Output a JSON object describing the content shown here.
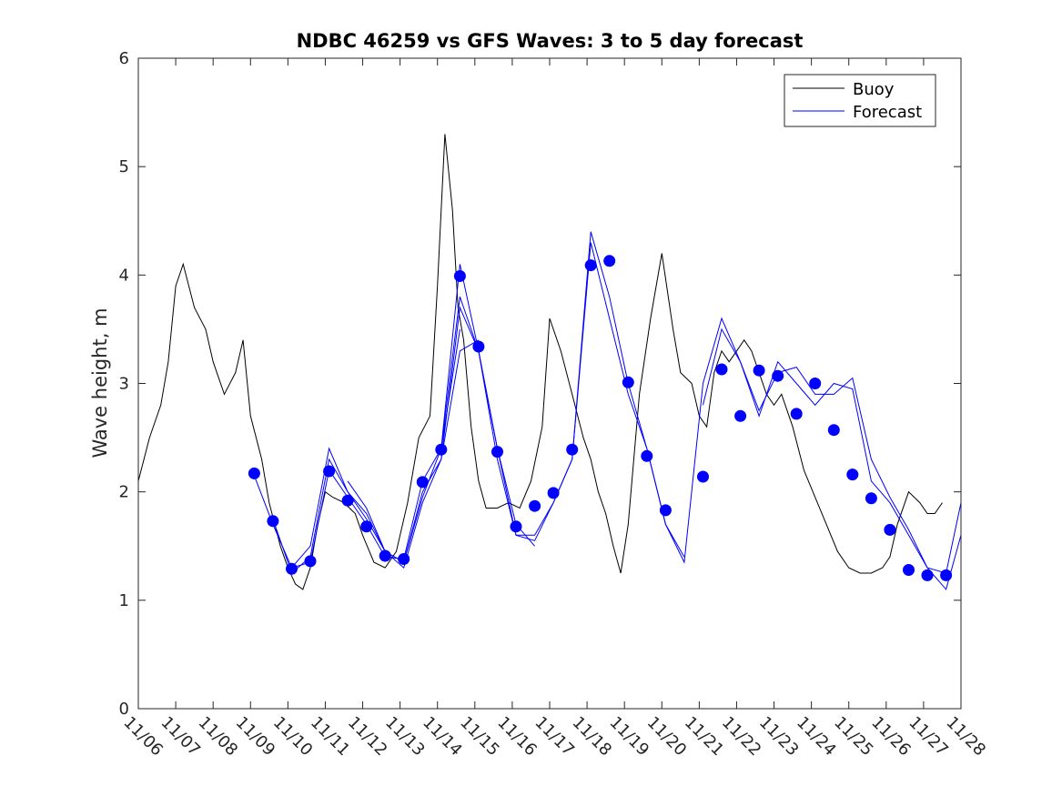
{
  "chart_data": {
    "type": "line",
    "title": "NDBC 46259 vs GFS Waves: 3 to 5 day forecast",
    "xlabel": "",
    "ylabel": "Wave height, m",
    "xlim": [
      0,
      22
    ],
    "ylim": [
      0,
      6
    ],
    "yticks": [
      0,
      1,
      2,
      3,
      4,
      5,
      6
    ],
    "xtick_labels": [
      "11/06",
      "11/07",
      "11/08",
      "11/09",
      "11/10",
      "11/11",
      "11/12",
      "11/13",
      "11/14",
      "11/15",
      "11/16",
      "11/17",
      "11/18",
      "11/19",
      "11/20",
      "11/21",
      "11/22",
      "11/23",
      "11/24",
      "11/25",
      "11/26",
      "11/27",
      "11/28"
    ],
    "grid": false,
    "legend": {
      "position": "top-right",
      "entries": [
        "Buoy",
        "Forecast"
      ]
    },
    "colors": {
      "buoy": "#000000",
      "forecast": "#0000ff",
      "axis": "#262626"
    },
    "buoy": {
      "name": "Buoy",
      "x": [
        0,
        0.3,
        0.6,
        0.8,
        1.0,
        1.2,
        1.5,
        1.8,
        2.0,
        2.3,
        2.6,
        2.8,
        3.0,
        3.3,
        3.5,
        3.8,
        4.0,
        4.2,
        4.4,
        4.6,
        4.8,
        5.0,
        5.2,
        5.5,
        5.8,
        6.0,
        6.3,
        6.6,
        6.9,
        7.2,
        7.5,
        7.8,
        8.0,
        8.2,
        8.4,
        8.55,
        8.7,
        8.9,
        9.1,
        9.3,
        9.6,
        9.9,
        10.2,
        10.5,
        10.8,
        11.0,
        11.3,
        11.6,
        11.9,
        12.1,
        12.3,
        12.5,
        12.7,
        12.9,
        13.1,
        13.4,
        13.7,
        14.0,
        14.3,
        14.5,
        14.8,
        15.0,
        15.2,
        15.4,
        15.6,
        15.8,
        16.0,
        16.2,
        16.4,
        16.6,
        16.8,
        17.0,
        17.2,
        17.5,
        17.8,
        18.1,
        18.4,
        18.7,
        19.0,
        19.3,
        19.6,
        19.9,
        20.1,
        20.3,
        20.6,
        20.9,
        21.1,
        21.3,
        21.5
      ],
      "values": [
        2.1,
        2.5,
        2.8,
        3.2,
        3.9,
        4.1,
        3.7,
        3.5,
        3.2,
        2.9,
        3.1,
        3.4,
        2.7,
        2.3,
        1.9,
        1.5,
        1.3,
        1.15,
        1.1,
        1.3,
        1.7,
        2.0,
        1.95,
        1.9,
        1.8,
        1.6,
        1.35,
        1.3,
        1.45,
        1.9,
        2.5,
        2.7,
        3.9,
        5.3,
        4.6,
        3.7,
        3.4,
        2.6,
        2.1,
        1.85,
        1.85,
        1.9,
        1.85,
        2.1,
        2.6,
        3.6,
        3.3,
        2.9,
        2.5,
        2.3,
        2.0,
        1.8,
        1.5,
        1.25,
        1.7,
        2.9,
        3.6,
        4.2,
        3.5,
        3.1,
        3.0,
        2.7,
        2.6,
        3.1,
        3.3,
        3.2,
        3.3,
        3.4,
        3.3,
        3.1,
        2.9,
        2.8,
        2.9,
        2.6,
        2.2,
        1.95,
        1.7,
        1.45,
        1.3,
        1.25,
        1.25,
        1.3,
        1.4,
        1.7,
        2.0,
        1.9,
        1.8,
        1.8,
        1.9
      ]
    },
    "forecast_runs": [
      {
        "name": "Forecast",
        "x": [
          3.1,
          3.6,
          4.1,
          4.6,
          5.1,
          5.6,
          6.1,
          6.6,
          7.1,
          7.6,
          8.1,
          8.6
        ],
        "values": [
          2.15,
          1.7,
          1.3,
          1.35,
          2.2,
          1.95,
          1.7,
          1.4,
          1.38,
          2.1,
          2.4,
          3.5
        ]
      },
      {
        "name": "Forecast",
        "x": [
          3.6,
          4.1,
          4.6,
          5.1,
          5.6,
          6.1,
          6.6,
          7.1,
          7.6,
          8.1,
          8.6,
          9.1
        ],
        "values": [
          1.75,
          1.25,
          1.4,
          2.3,
          2.0,
          1.75,
          1.45,
          1.35,
          2.0,
          2.3,
          3.3,
          3.4
        ]
      },
      {
        "name": "Forecast",
        "x": [
          4.1,
          4.6,
          5.1,
          5.6,
          6.1,
          6.6,
          7.1,
          7.6,
          8.1,
          8.6,
          9.1,
          9.6,
          10.1,
          10.6
        ],
        "values": [
          1.3,
          1.5,
          2.4,
          2.0,
          1.8,
          1.45,
          1.3,
          1.9,
          2.3,
          3.7,
          3.3,
          2.4,
          1.7,
          1.5
        ]
      },
      {
        "name": "Forecast",
        "x": [
          5.6,
          6.1,
          6.6,
          7.1,
          7.6,
          8.1,
          8.6,
          9.1,
          9.6,
          10.1,
          10.6,
          11.1,
          11.6,
          12.1,
          12.6,
          13.1,
          13.6,
          14.1,
          14.6
        ],
        "values": [
          2.1,
          1.85,
          1.45,
          1.35,
          1.95,
          2.4,
          4.1,
          3.3,
          2.3,
          1.6,
          1.55,
          1.9,
          2.3,
          4.3,
          3.6,
          2.9,
          2.4,
          1.7,
          1.4
        ]
      },
      {
        "name": "Forecast",
        "x": [
          8.1,
          8.6,
          9.1,
          9.6,
          10.1,
          10.6,
          11.1,
          11.6,
          12.1,
          12.6,
          13.1,
          13.6,
          14.1,
          14.6,
          15.1,
          15.6,
          16.1,
          16.6,
          17.1,
          17.6,
          18.1,
          18.6,
          19.1,
          19.6,
          20.1,
          20.6,
          21.1,
          21.6,
          22.0
        ],
        "values": [
          2.4,
          3.8,
          3.3,
          2.4,
          1.6,
          1.6,
          1.9,
          2.3,
          4.4,
          3.8,
          3.0,
          2.4,
          1.7,
          1.35,
          3.0,
          3.6,
          3.2,
          2.7,
          3.2,
          3.0,
          2.8,
          3.0,
          2.95,
          2.1,
          1.9,
          1.6,
          1.3,
          1.1,
          1.6
        ]
      },
      {
        "name": "Forecast",
        "x": [
          15.1,
          15.6,
          16.1,
          16.6,
          17.1,
          17.6,
          18.1,
          18.6,
          19.1,
          19.6,
          20.1,
          20.6,
          21.1,
          21.6,
          22.0
        ],
        "values": [
          2.8,
          3.5,
          3.2,
          2.75,
          3.1,
          3.15,
          2.9,
          2.9,
          3.05,
          2.3,
          1.95,
          1.65,
          1.3,
          1.25,
          1.9
        ]
      }
    ],
    "forecast_markers": {
      "x": [
        3.1,
        3.6,
        4.1,
        4.6,
        5.1,
        5.6,
        6.1,
        6.6,
        7.1,
        7.6,
        8.1,
        8.6,
        9.1,
        9.6,
        10.1,
        10.6,
        11.1,
        11.6,
        12.1,
        12.6,
        13.1,
        13.6,
        14.1,
        15.1,
        15.6,
        16.1,
        16.6,
        17.1,
        17.6,
        18.1,
        18.6,
        19.1,
        19.6,
        20.1,
        20.6,
        21.1,
        21.6
      ],
      "values": [
        2.17,
        1.73,
        1.29,
        1.36,
        2.19,
        1.92,
        1.68,
        1.41,
        1.38,
        2.09,
        2.39,
        3.99,
        3.34,
        2.37,
        1.68,
        1.87,
        1.99,
        2.39,
        4.09,
        4.13,
        3.01,
        2.33,
        1.83,
        2.14,
        3.13,
        2.7,
        3.12,
        3.07,
        2.72,
        3.0,
        2.57,
        2.16,
        1.94,
        1.65,
        1.28,
        1.23,
        1.23
      ]
    }
  }
}
